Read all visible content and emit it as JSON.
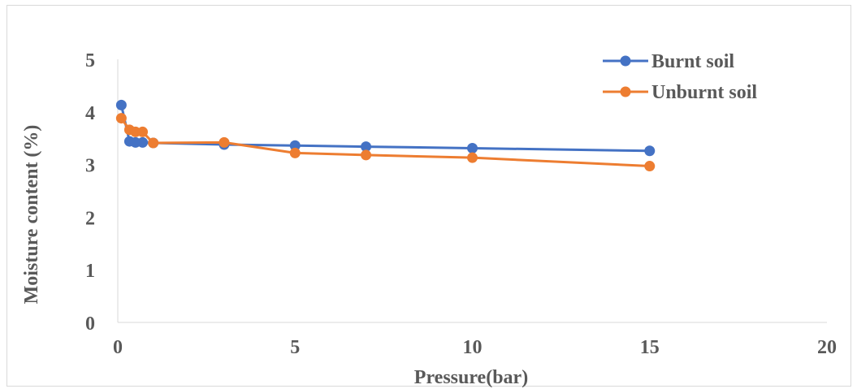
{
  "chart_data": {
    "type": "scatter",
    "title": "",
    "xlabel": "Pressure(bar)",
    "ylabel": "Moisture content (%)",
    "xlim": [
      0,
      20
    ],
    "ylim": [
      0,
      5
    ],
    "xticks": [
      "0",
      "5",
      "10",
      "15",
      "20"
    ],
    "yticks": [
      "0",
      "1",
      "2",
      "3",
      "4",
      "5"
    ],
    "grid": false,
    "legend_position": "top-right",
    "series": [
      {
        "name": "Burnt soil",
        "color": "#4472c4",
        "x": [
          0.1,
          0.33,
          0.5,
          0.7,
          1,
          3,
          5,
          7,
          10,
          15
        ],
        "y": [
          4.13,
          3.44,
          3.42,
          3.42,
          3.41,
          3.38,
          3.36,
          3.34,
          3.31,
          3.26
        ]
      },
      {
        "name": "Unburnt soil",
        "color": "#ed7d31",
        "x": [
          0.1,
          0.33,
          0.5,
          0.7,
          1,
          3,
          5,
          7,
          10,
          15
        ],
        "y": [
          3.88,
          3.66,
          3.62,
          3.62,
          3.41,
          3.42,
          3.22,
          3.18,
          3.13,
          2.97
        ]
      }
    ]
  }
}
